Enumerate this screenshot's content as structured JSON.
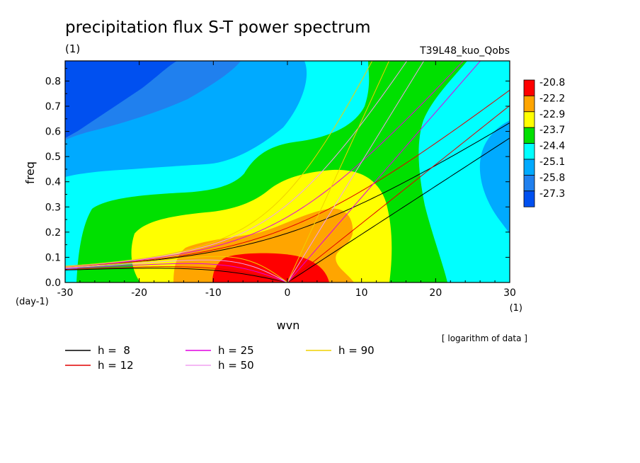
{
  "chart_data": {
    "type": "heatmap",
    "title": "precipitation flux S-T power spectrum",
    "subtitle_left": "(1)",
    "subtitle_right": "T39L48_kuo_Qobs",
    "xlabel": "wvn",
    "ylabel": "freq",
    "x_unit": "(1)",
    "y_unit": "(day-1)",
    "xlim": [
      -30,
      30
    ],
    "ylim": [
      0,
      0.88
    ],
    "x_ticks": [
      -30,
      -20,
      -10,
      0,
      10,
      20,
      30
    ],
    "y_ticks": [
      0.0,
      0.1,
      0.2,
      0.3,
      0.4,
      0.5,
      0.6,
      0.7,
      0.8
    ],
    "note": "[ logarithm of data ]",
    "colorbar": {
      "levels": [
        "-20.8",
        "-22.2",
        "-22.9",
        "-23.7",
        "-24.4",
        "-25.1",
        "-25.8",
        "-27.3"
      ],
      "colors": [
        "#ff0000",
        "#ffa500",
        "#ffff00",
        "#00e000",
        "#00ffff",
        "#00aaff",
        "#2080ee",
        "#0050f0"
      ]
    },
    "dispersion_curves": [
      {
        "label": "h =  8",
        "h": 8,
        "color": "#000000"
      },
      {
        "label": "h = 12",
        "h": 12,
        "color": "#e00000"
      },
      {
        "label": "h = 25",
        "h": 25,
        "color": "#e000e0"
      },
      {
        "label": "h = 50",
        "h": 50,
        "color": "#f0a0f0"
      },
      {
        "label": "h = 90",
        "h": 90,
        "color": "#f0d000"
      }
    ]
  }
}
